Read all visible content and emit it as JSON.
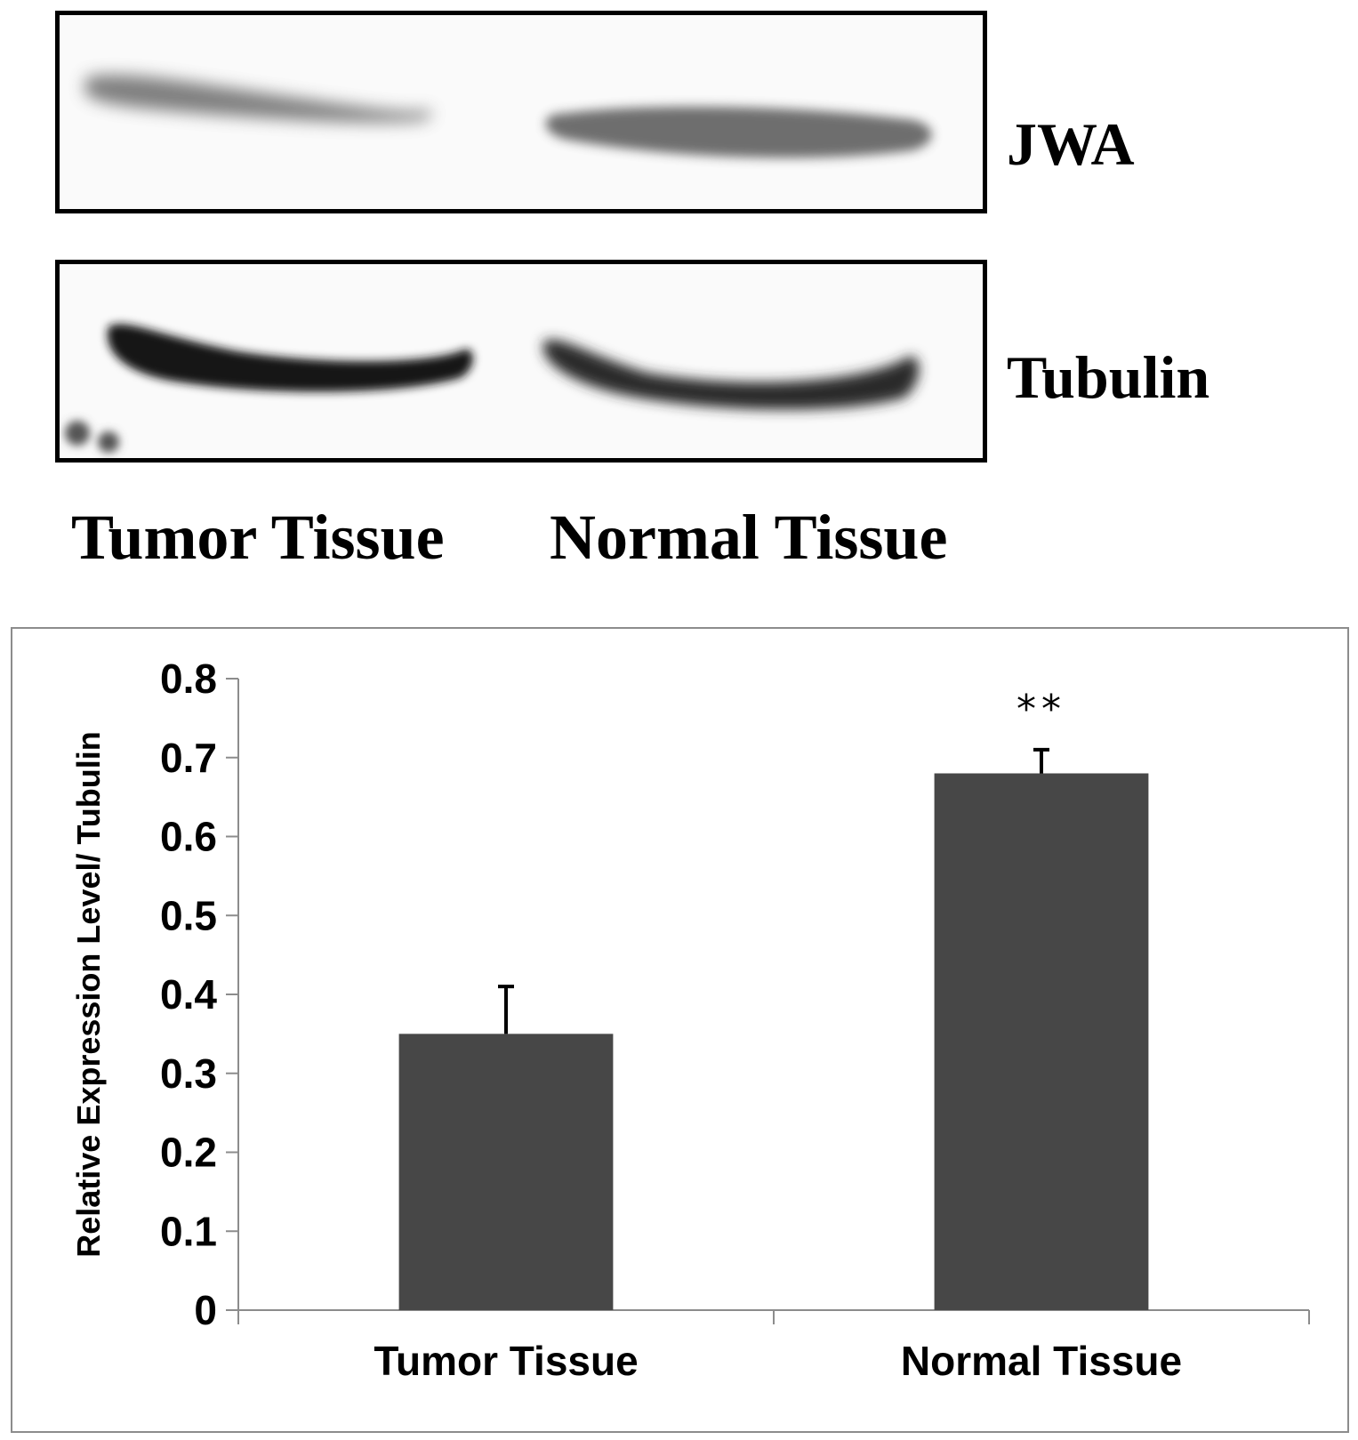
{
  "blot": {
    "bands": [
      {
        "label": "JWA"
      },
      {
        "label": "Tubulin"
      }
    ],
    "lanes": [
      "Tumor Tissue",
      "Normal Tissue"
    ]
  },
  "chart_data": {
    "type": "bar",
    "categories": [
      "Tumor Tissue",
      "Normal Tissue"
    ],
    "values": [
      0.35,
      0.68
    ],
    "error": [
      0.06,
      0.03
    ],
    "annotations": [
      {
        "category": "Normal Tissue",
        "text": "**"
      }
    ],
    "title": "",
    "xlabel": "",
    "ylabel": "Relative Expression Level/ Tubulin",
    "ylim": [
      0,
      0.8
    ],
    "yticks": [
      "0",
      "0.1",
      "0.2",
      "0.3",
      "0.4",
      "0.5",
      "0.6",
      "0.7",
      "0.8"
    ],
    "grid": false,
    "legend": "none",
    "bar_color": "#474747"
  }
}
